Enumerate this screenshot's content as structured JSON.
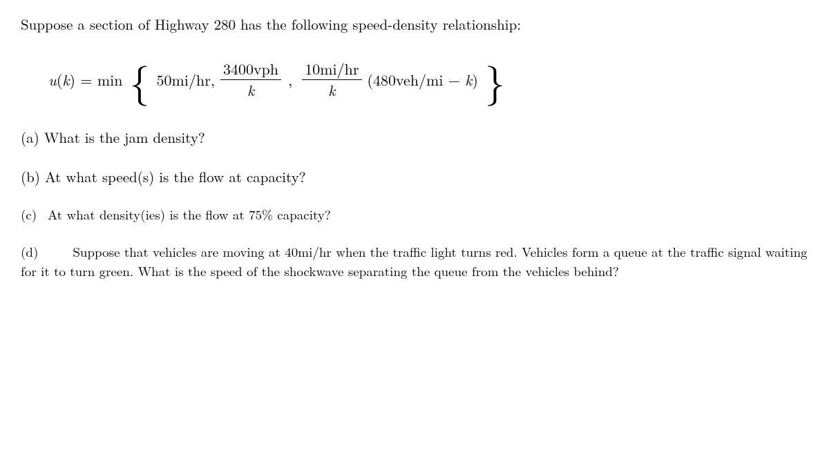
{
  "intro": "Suppose a section of Highway 280 has the following speed-density relationship:",
  "equation": {
    "lhs_u": "u",
    "lhs_k": "k",
    "eq": " = min",
    "term1": "50mi/hr,",
    "frac1_num": "3400vph",
    "frac1_den": "k",
    "comma": ",",
    "frac2_num": "10mi/hr",
    "frac2_den": "k",
    "term3_open": "(480veh/mi − ",
    "term3_k": "k",
    "term3_close": ")"
  },
  "parts": {
    "a": {
      "label": "(a)",
      "text": "What is the jam density?"
    },
    "b": {
      "label": "(b)",
      "text": "At what speed(s) is the flow at capacity?"
    },
    "c": {
      "label": "(c)",
      "text": "At what density(ies) is the flow at 75% capacity?"
    },
    "d": {
      "label": "(d)",
      "text": "Suppose that vehicles are moving at 40mi/hr when the traffic light turns red. Vehicles form a queue at the traffic signal waiting for it to turn green. What is the speed of the shockwave separating the queue from the vehicles behind?"
    }
  }
}
